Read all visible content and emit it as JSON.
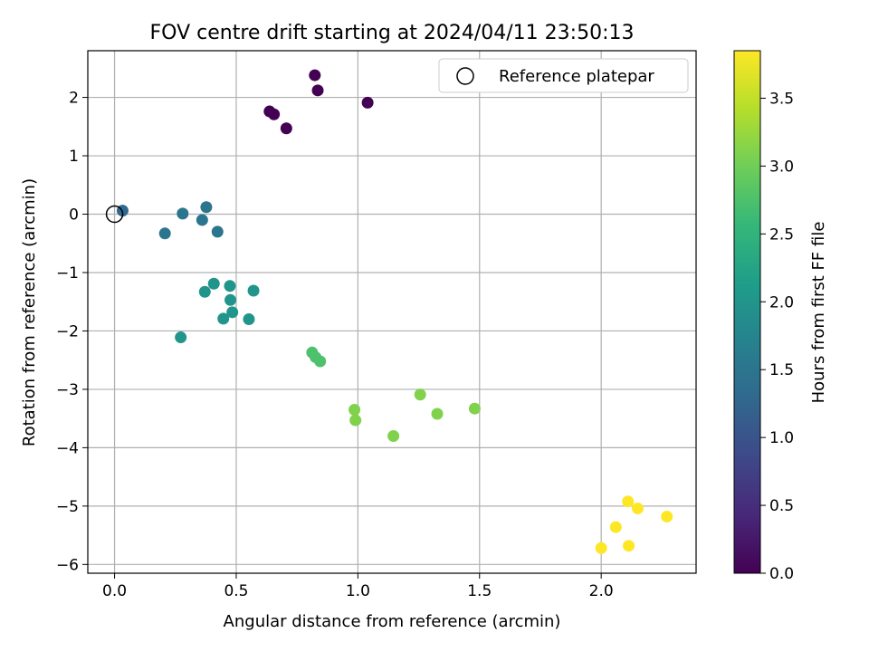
{
  "chart_data": {
    "type": "scatter",
    "title": "FOV centre drift starting at 2024/04/11 23:50:13",
    "xlabel": "Angular distance from reference (arcmin)",
    "ylabel": "Rotation from reference (arcmin)",
    "xlim": [
      -0.11,
      2.39
    ],
    "ylim": [
      -6.15,
      2.8
    ],
    "xticks": [
      0.0,
      0.5,
      1.0,
      1.5,
      2.0
    ],
    "xtick_labels": [
      "0.0",
      "0.5",
      "1.0",
      "1.5",
      "2.0"
    ],
    "yticks": [
      -6,
      -5,
      -4,
      -3,
      -2,
      -1,
      0,
      1,
      2
    ],
    "ytick_labels": [
      "−6",
      "−5",
      "−4",
      "−3",
      "−2",
      "−1",
      "0",
      "1",
      "2"
    ],
    "grid": true,
    "legend": {
      "placement": "top-right",
      "entries": [
        "Reference platepar"
      ]
    },
    "reference": {
      "x": 0.0,
      "y": 0.0
    },
    "colorbar": {
      "label": "Hours from first FF file",
      "colormap": "viridis",
      "range": [
        0.0,
        3.85
      ],
      "ticks": [
        0.0,
        0.5,
        1.0,
        1.5,
        2.0,
        2.5,
        3.0,
        3.5
      ],
      "tick_labels": [
        "0.0",
        "0.5",
        "1.0",
        "1.5",
        "2.0",
        "2.5",
        "3.0",
        "3.5"
      ]
    },
    "points": [
      {
        "x": 0.823,
        "y": 2.38,
        "hours": 0.0
      },
      {
        "x": 0.835,
        "y": 2.12,
        "hours": 0.0
      },
      {
        "x": 1.04,
        "y": 1.91,
        "hours": 0.0
      },
      {
        "x": 0.637,
        "y": 1.76,
        "hours": 0.0
      },
      {
        "x": 0.655,
        "y": 1.71,
        "hours": 0.0
      },
      {
        "x": 0.706,
        "y": 1.47,
        "hours": 0.0
      },
      {
        "x": 0.033,
        "y": 0.06,
        "hours": 1.3
      },
      {
        "x": 0.28,
        "y": 0.01,
        "hours": 1.5
      },
      {
        "x": 0.377,
        "y": 0.12,
        "hours": 1.5
      },
      {
        "x": 0.36,
        "y": -0.1,
        "hours": 1.5
      },
      {
        "x": 0.207,
        "y": -0.33,
        "hours": 1.5
      },
      {
        "x": 0.423,
        "y": -0.3,
        "hours": 1.5
      },
      {
        "x": 0.408,
        "y": -1.19,
        "hours": 2.0
      },
      {
        "x": 0.371,
        "y": -1.33,
        "hours": 2.0
      },
      {
        "x": 0.474,
        "y": -1.23,
        "hours": 2.0
      },
      {
        "x": 0.476,
        "y": -1.47,
        "hours": 2.0
      },
      {
        "x": 0.571,
        "y": -1.31,
        "hours": 2.0
      },
      {
        "x": 0.484,
        "y": -1.68,
        "hours": 2.0
      },
      {
        "x": 0.447,
        "y": -1.79,
        "hours": 2.0
      },
      {
        "x": 0.552,
        "y": -1.8,
        "hours": 2.0
      },
      {
        "x": 0.272,
        "y": -2.11,
        "hours": 2.0
      },
      {
        "x": 0.812,
        "y": -2.37,
        "hours": 2.75
      },
      {
        "x": 0.826,
        "y": -2.45,
        "hours": 2.75
      },
      {
        "x": 0.845,
        "y": -2.52,
        "hours": 2.75
      },
      {
        "x": 0.986,
        "y": -3.35,
        "hours": 3.1
      },
      {
        "x": 0.99,
        "y": -3.53,
        "hours": 3.1
      },
      {
        "x": 1.146,
        "y": -3.8,
        "hours": 3.1
      },
      {
        "x": 1.256,
        "y": -3.09,
        "hours": 3.1
      },
      {
        "x": 1.326,
        "y": -3.42,
        "hours": 3.1
      },
      {
        "x": 1.48,
        "y": -3.33,
        "hours": 3.1
      },
      {
        "x": 2.11,
        "y": -4.92,
        "hours": 3.85
      },
      {
        "x": 2.15,
        "y": -5.04,
        "hours": 3.85
      },
      {
        "x": 2.27,
        "y": -5.18,
        "hours": 3.85
      },
      {
        "x": 2.06,
        "y": -5.36,
        "hours": 3.85
      },
      {
        "x": 2.113,
        "y": -5.68,
        "hours": 3.85
      },
      {
        "x": 2.0,
        "y": -5.72,
        "hours": 3.85
      }
    ]
  }
}
